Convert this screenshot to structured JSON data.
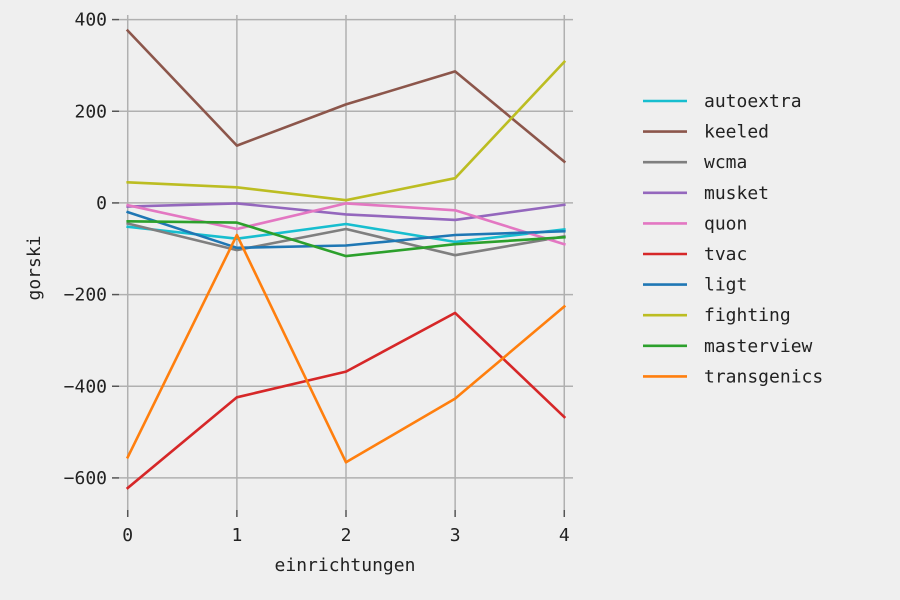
{
  "chart_data": {
    "type": "line",
    "xlabel": "einrichtungen",
    "ylabel": "gorski",
    "x": [
      0,
      1,
      2,
      3,
      4
    ],
    "xlim": [
      -0.08,
      4.08
    ],
    "ylim": [
      -670,
      410
    ],
    "xticks": [
      0,
      1,
      2,
      3,
      4
    ],
    "yticks": [
      -600,
      -400,
      -200,
      0,
      200,
      400
    ],
    "grid": true,
    "legend_position": "right",
    "series": [
      {
        "name": "autoextra",
        "color": "#17becf",
        "values": [
          -52,
          -78,
          -46,
          -85,
          -58
        ]
      },
      {
        "name": "keeled",
        "color": "#8c564b",
        "values": [
          376,
          125,
          215,
          287,
          90
        ]
      },
      {
        "name": "wcma",
        "color": "#7f7f7f",
        "values": [
          -45,
          -103,
          -57,
          -114,
          -73
        ]
      },
      {
        "name": "musket",
        "color": "#9467bd",
        "values": [
          -8,
          -1,
          -25,
          -37,
          -4
        ]
      },
      {
        "name": "quon",
        "color": "#e377c2",
        "values": [
          -5,
          -57,
          -1,
          -16,
          -90
        ]
      },
      {
        "name": "tvac",
        "color": "#d62728",
        "values": [
          -622,
          -424,
          -368,
          -240,
          -467
        ]
      },
      {
        "name": "ligt",
        "color": "#1f77b4",
        "values": [
          -20,
          -98,
          -93,
          -70,
          -62
        ]
      },
      {
        "name": "fighting",
        "color": "#bcbd22",
        "values": [
          45,
          34,
          6,
          54,
          308
        ]
      },
      {
        "name": "masterview",
        "color": "#2ca02c",
        "values": [
          -40,
          -43,
          -116,
          -90,
          -75
        ]
      },
      {
        "name": "transgenics",
        "color": "#ff7f0e",
        "values": [
          -555,
          -70,
          -566,
          -427,
          -226
        ]
      }
    ]
  }
}
